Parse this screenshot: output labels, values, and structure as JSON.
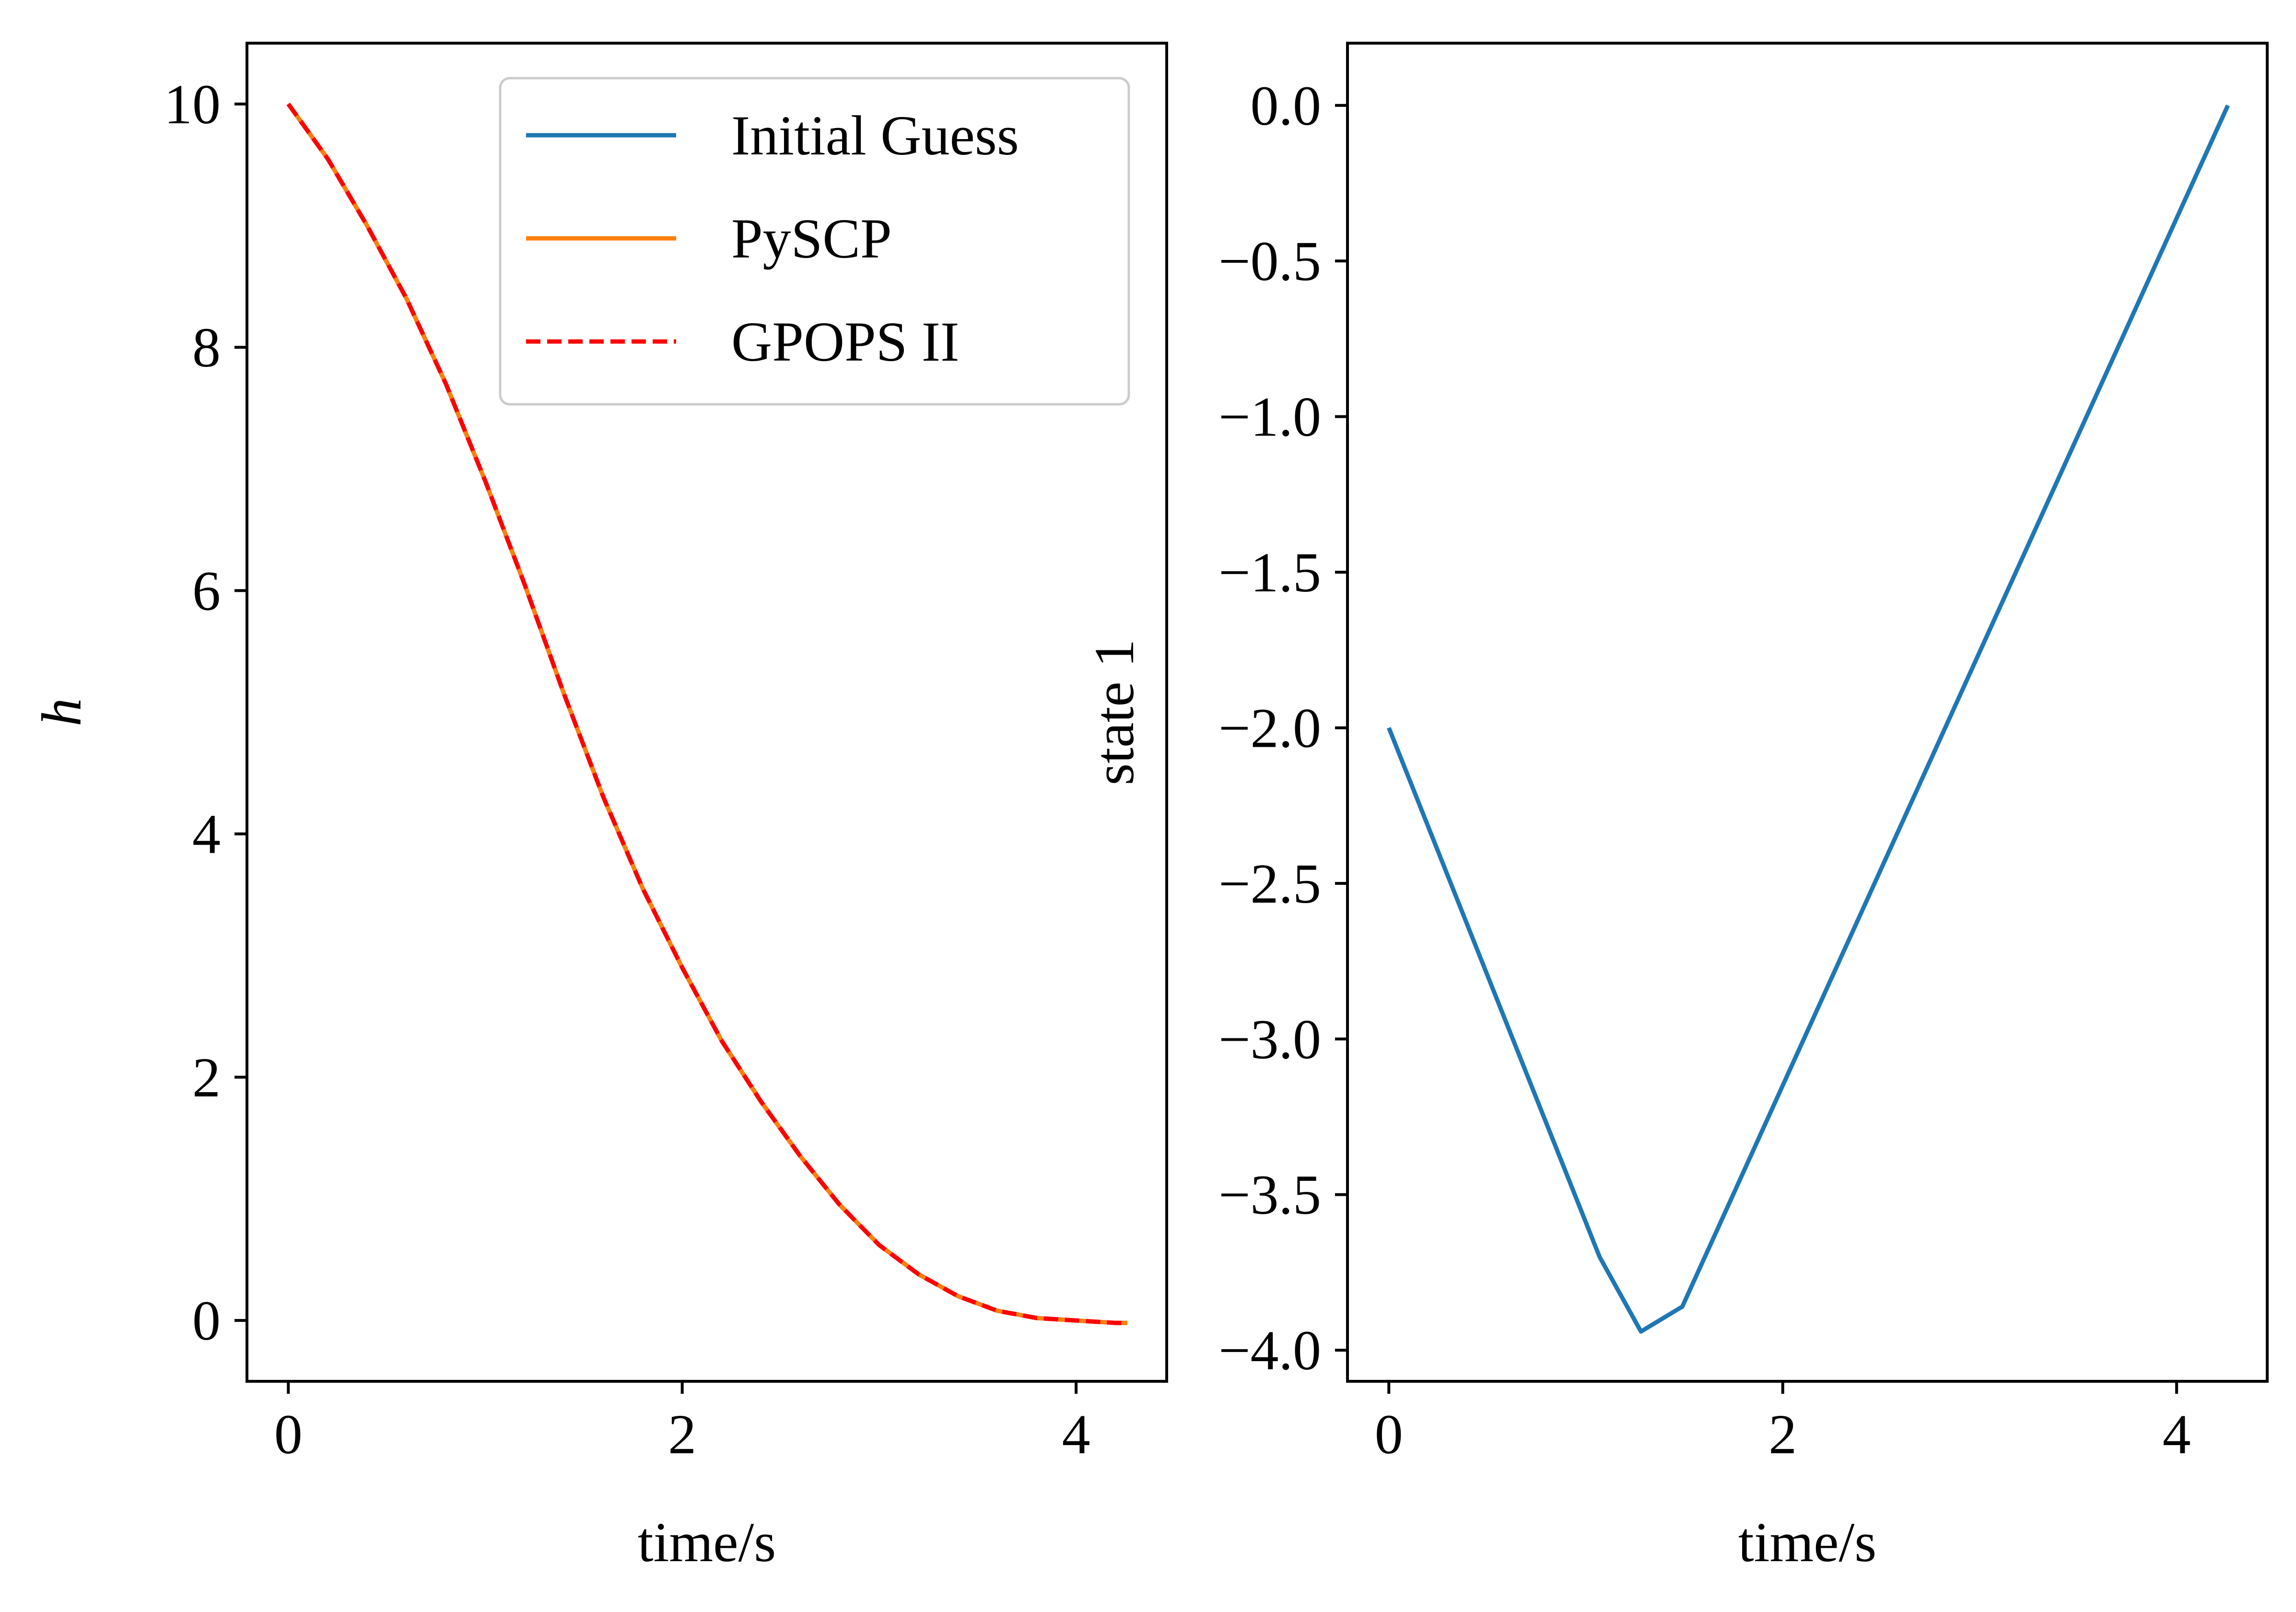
{
  "colors": {
    "initial_guess": "#1f77b4",
    "pyscp": "#ff7f0e",
    "gpops": "#ff0000",
    "legend_border": "#cccccc"
  },
  "chart_data": [
    {
      "type": "line",
      "xlabel": "time/s",
      "ylabel": "h",
      "xlim": [
        -0.21,
        4.46
      ],
      "ylim": [
        -0.5,
        10.5
      ],
      "xticks": [
        0,
        2,
        4
      ],
      "xtick_labels": [
        "0",
        "2",
        "4"
      ],
      "yticks": [
        0,
        2,
        4,
        6,
        8,
        10
      ],
      "ytick_labels": [
        "0",
        "2",
        "4",
        "6",
        "8",
        "10"
      ],
      "grid": false,
      "legend": "top-right",
      "series": [
        {
          "name": "Initial Guess",
          "color": "#1f77b4",
          "style": "solid",
          "x": [
            0,
            0.2,
            0.4,
            0.6,
            0.8,
            1.0,
            1.2,
            1.4,
            1.6,
            1.8,
            2.0,
            2.2,
            2.4,
            2.6,
            2.8,
            3.0,
            3.2,
            3.4,
            3.6,
            3.8,
            4.0,
            4.2,
            4.26
          ],
          "y": [
            10.0,
            9.55,
            9.0,
            8.4,
            7.7,
            6.9,
            6.05,
            5.15,
            4.3,
            3.55,
            2.9,
            2.3,
            1.8,
            1.35,
            0.95,
            0.62,
            0.38,
            0.2,
            0.08,
            0.02,
            0.0,
            -0.02,
            -0.02
          ]
        },
        {
          "name": "PySCP",
          "color": "#ff7f0e",
          "style": "solid",
          "x": [
            0,
            0.2,
            0.4,
            0.6,
            0.8,
            1.0,
            1.2,
            1.4,
            1.6,
            1.8,
            2.0,
            2.2,
            2.4,
            2.6,
            2.8,
            3.0,
            3.2,
            3.4,
            3.6,
            3.8,
            4.0,
            4.2,
            4.26
          ],
          "y": [
            10.0,
            9.55,
            9.0,
            8.4,
            7.7,
            6.9,
            6.05,
            5.15,
            4.3,
            3.55,
            2.9,
            2.3,
            1.8,
            1.35,
            0.95,
            0.62,
            0.38,
            0.2,
            0.08,
            0.02,
            0.0,
            -0.02,
            -0.02
          ]
        },
        {
          "name": "GPOPS II",
          "color": "#ff0000",
          "style": "dashed",
          "x": [
            0,
            0.2,
            0.4,
            0.6,
            0.8,
            1.0,
            1.2,
            1.4,
            1.6,
            1.8,
            2.0,
            2.2,
            2.4,
            2.6,
            2.8,
            3.0,
            3.2,
            3.4,
            3.6,
            3.8,
            4.0,
            4.2,
            4.26
          ],
          "y": [
            10.0,
            9.55,
            9.0,
            8.4,
            7.7,
            6.9,
            6.05,
            5.15,
            4.3,
            3.55,
            2.9,
            2.3,
            1.8,
            1.35,
            0.95,
            0.62,
            0.38,
            0.2,
            0.08,
            0.02,
            0.0,
            -0.02,
            -0.02
          ]
        }
      ]
    },
    {
      "type": "line",
      "xlabel": "time/s",
      "ylabel": "state 1",
      "xlim": [
        -0.21,
        4.46
      ],
      "ylim": [
        -4.1,
        0.2
      ],
      "xticks": [
        0,
        2,
        4
      ],
      "xtick_labels": [
        "0",
        "2",
        "4"
      ],
      "yticks": [
        0.0,
        -0.5,
        -1.0,
        -1.5,
        -2.0,
        -2.5,
        -3.0,
        -3.5,
        -4.0
      ],
      "ytick_labels": [
        "0.0",
        "−0.5",
        "−1.0",
        "−1.5",
        "−2.0",
        "−2.5",
        "−3.0",
        "−3.5",
        "−4.0"
      ],
      "grid": false,
      "series": [
        {
          "color": "#1f77b4",
          "style": "solid",
          "x": [
            0,
            1.07,
            1.28,
            1.49,
            4.26
          ],
          "y": [
            -2.0,
            -3.7,
            -3.94,
            -3.86,
            0.0
          ]
        }
      ]
    }
  ]
}
